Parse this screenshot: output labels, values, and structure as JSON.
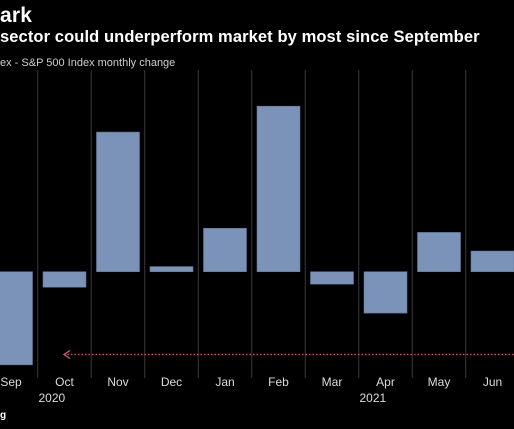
{
  "header": {
    "title": "ark",
    "subtitle": "sector could underperform market by most since September",
    "legend_text": "ex - S&P 500 Index monthly change"
  },
  "footer": {
    "source_fragment": "g"
  },
  "colors": {
    "bar": "#7b93b8",
    "grid": "#3a3a3a",
    "baseline": "#9a9a9a",
    "reference_line": "#e0567a",
    "background": "#000000"
  },
  "chart_data": {
    "type": "bar",
    "categories": [
      "Sep",
      "Oct",
      "Nov",
      "Dec",
      "Jan",
      "Feb",
      "Mar",
      "Apr",
      "May",
      "Jun"
    ],
    "year_labels": [
      {
        "label": "2020",
        "category": "Oct"
      },
      {
        "label": "2021",
        "category": "Apr"
      }
    ],
    "series": [
      {
        "values": [
          -9.0,
          -1.5,
          13.5,
          0.5,
          4.2,
          16.0,
          -1.2,
          -4.0,
          3.8,
          2.0
        ]
      }
    ],
    "reference_line": {
      "value": -8.0,
      "style": "dotted",
      "arrow": "left"
    },
    "ylim": [
      -9.5,
      19.5
    ],
    "grid": "vertical",
    "xlabel": "",
    "ylabel": ""
  }
}
